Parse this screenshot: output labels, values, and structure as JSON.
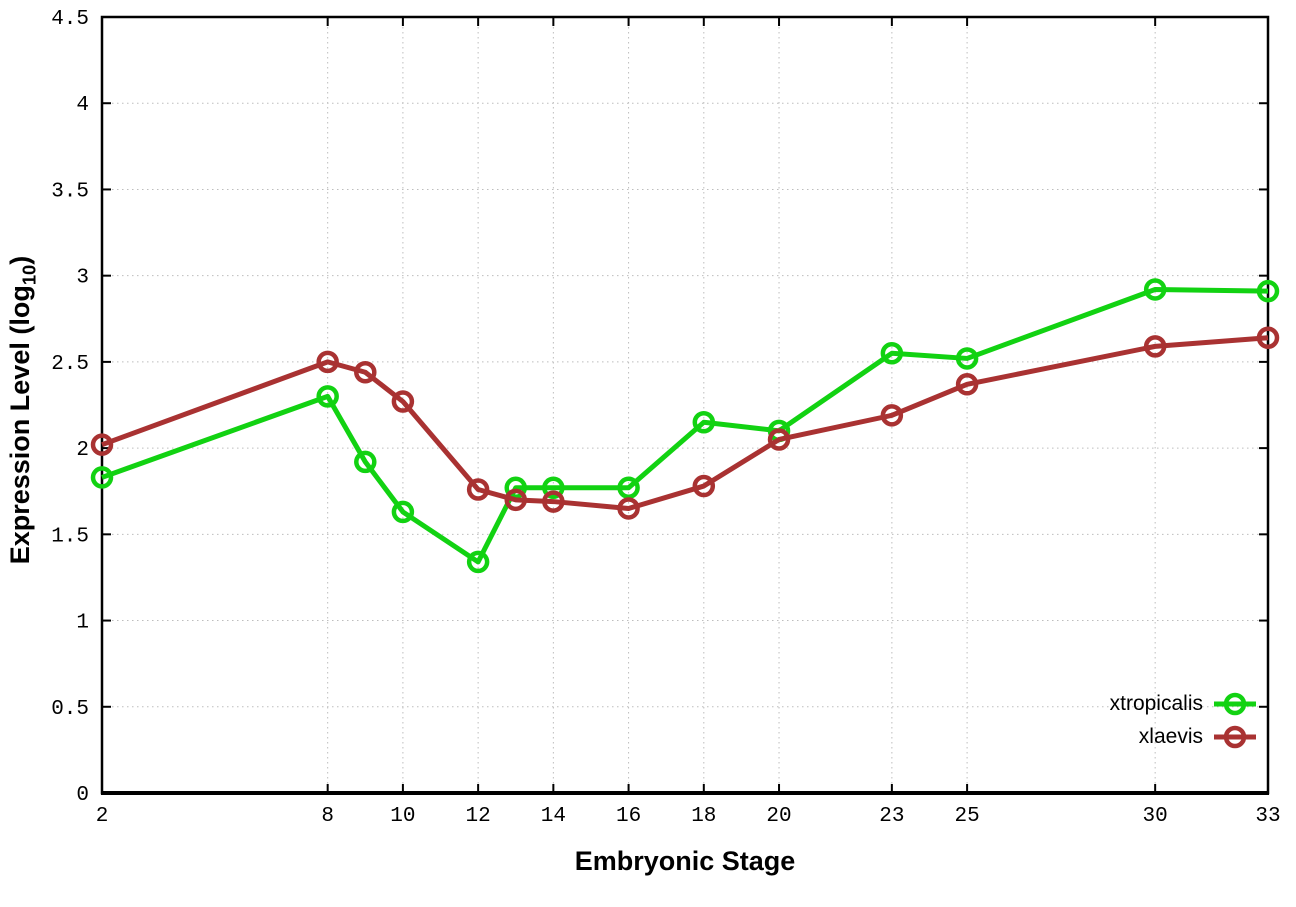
{
  "page": {
    "background_color": "#ffffff",
    "axis_color": "#000000",
    "grid_color": "#bdbdbd"
  },
  "chart_data": {
    "type": "line",
    "title": "",
    "xlabel": "Embryonic Stage",
    "ylabel_prefix": "Expression Level (log",
    "ylabel_sub": "10",
    "ylabel_suffix": ")",
    "xlim": [
      2,
      33
    ],
    "ylim": [
      0,
      4.5
    ],
    "grid": true,
    "legend_position": "inside-bottom-right",
    "x": [
      2,
      8,
      9,
      10,
      12,
      13,
      14,
      16,
      18,
      20,
      23,
      25,
      30,
      33
    ],
    "xticks": [
      2,
      8,
      10,
      12,
      14,
      16,
      18,
      20,
      23,
      25,
      30,
      33
    ],
    "xtick_labels": [
      "2",
      "8",
      "10",
      "12",
      "14",
      "16",
      "18",
      "20",
      "23",
      "25",
      "30",
      "33"
    ],
    "yticks": [
      0,
      0.5,
      1,
      1.5,
      2,
      2.5,
      3,
      3.5,
      4,
      4.5
    ],
    "ytick_labels": [
      "0",
      "0.5",
      "1",
      "1.5",
      "2",
      "2.5",
      "3",
      "3.5",
      "4",
      "4.5"
    ],
    "series": [
      {
        "name": "xtropicalis",
        "color": "#12d212",
        "marker": "open-circle",
        "values": [
          1.83,
          2.3,
          1.92,
          1.63,
          1.34,
          1.77,
          1.77,
          1.77,
          2.15,
          2.1,
          2.55,
          2.52,
          2.92,
          2.91
        ]
      },
      {
        "name": "xlaevis",
        "color": "#a93232",
        "marker": "open-circle",
        "values": [
          2.02,
          2.5,
          2.44,
          2.27,
          1.76,
          1.7,
          1.69,
          1.65,
          1.78,
          2.05,
          2.19,
          2.37,
          2.59,
          2.64
        ]
      }
    ]
  }
}
